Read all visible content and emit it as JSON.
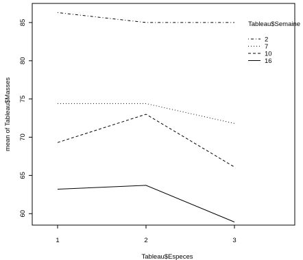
{
  "chart_data": {
    "type": "line",
    "xlabel": "Tableau$Especes",
    "ylabel": "mean of  Tableau$Masses",
    "categories": [
      "1",
      "2",
      "3"
    ],
    "ylim": [
      58.5,
      87.5
    ],
    "yticks": [
      60,
      65,
      70,
      75,
      80,
      85
    ],
    "legend_title": "Tableau$Semaine",
    "legend_position": "top-right",
    "series": [
      {
        "name": "2",
        "values": [
          86.3,
          85.0,
          85.0
        ],
        "linestyle": "dotdash"
      },
      {
        "name": "7",
        "values": [
          74.4,
          74.4,
          71.8
        ],
        "linestyle": "dotted"
      },
      {
        "name": "10",
        "values": [
          69.3,
          73.0,
          66.1
        ],
        "linestyle": "dashed"
      },
      {
        "name": "16",
        "values": [
          63.2,
          63.7,
          58.9
        ],
        "linestyle": "solid"
      }
    ]
  }
}
